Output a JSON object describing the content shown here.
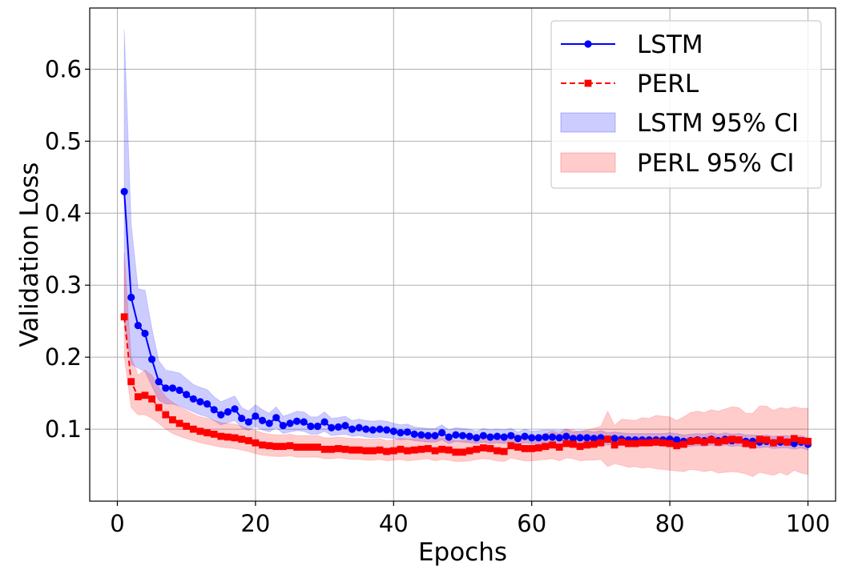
{
  "chart_data": {
    "type": "line",
    "xlabel": "Epochs",
    "ylabel": "Validation Loss",
    "xlim": [
      -4,
      104
    ],
    "ylim": [
      0.0,
      0.685
    ],
    "xticks": [
      0,
      20,
      40,
      60,
      80,
      100
    ],
    "yticks": [
      0.1,
      0.2,
      0.3,
      0.4,
      0.5,
      0.6
    ],
    "grid": true,
    "legend_position": "top-right",
    "x": [
      1,
      2,
      3,
      4,
      5,
      6,
      7,
      8,
      9,
      10,
      11,
      12,
      13,
      14,
      15,
      16,
      17,
      18,
      19,
      20,
      21,
      22,
      23,
      24,
      25,
      26,
      27,
      28,
      29,
      30,
      31,
      32,
      33,
      34,
      35,
      36,
      37,
      38,
      39,
      40,
      41,
      42,
      43,
      44,
      45,
      46,
      47,
      48,
      49,
      50,
      51,
      52,
      53,
      54,
      55,
      56,
      57,
      58,
      59,
      60,
      61,
      62,
      63,
      64,
      65,
      66,
      67,
      68,
      69,
      70,
      71,
      72,
      73,
      74,
      75,
      76,
      77,
      78,
      79,
      80,
      81,
      82,
      83,
      84,
      85,
      86,
      87,
      88,
      89,
      90,
      91,
      92,
      93,
      94,
      95,
      96,
      97,
      98,
      99,
      100
    ],
    "series": [
      {
        "name": "LSTM",
        "color": "#0000ff",
        "marker": "circle",
        "linestyle": "solid",
        "values": [
          0.43,
          0.283,
          0.244,
          0.233,
          0.197,
          0.166,
          0.157,
          0.157,
          0.154,
          0.148,
          0.142,
          0.138,
          0.135,
          0.127,
          0.12,
          0.124,
          0.128,
          0.115,
          0.11,
          0.118,
          0.112,
          0.108,
          0.116,
          0.105,
          0.108,
          0.111,
          0.11,
          0.104,
          0.104,
          0.11,
          0.102,
          0.103,
          0.105,
          0.1,
          0.102,
          0.1,
          0.099,
          0.1,
          0.099,
          0.097,
          0.095,
          0.096,
          0.093,
          0.092,
          0.091,
          0.091,
          0.095,
          0.089,
          0.092,
          0.091,
          0.09,
          0.088,
          0.091,
          0.089,
          0.09,
          0.089,
          0.091,
          0.087,
          0.09,
          0.088,
          0.088,
          0.089,
          0.089,
          0.088,
          0.09,
          0.087,
          0.088,
          0.088,
          0.087,
          0.088,
          0.086,
          0.087,
          0.086,
          0.085,
          0.085,
          0.085,
          0.085,
          0.085,
          0.085,
          0.086,
          0.085,
          0.083,
          0.084,
          0.085,
          0.084,
          0.086,
          0.084,
          0.086,
          0.084,
          0.085,
          0.083,
          0.083,
          0.082,
          0.083,
          0.081,
          0.082,
          0.082,
          0.08,
          0.082,
          0.079
        ],
        "ci_lower": [
          0.25,
          0.19,
          0.185,
          0.18,
          0.16,
          0.14,
          0.135,
          0.135,
          0.132,
          0.128,
          0.124,
          0.12,
          0.117,
          0.112,
          0.106,
          0.109,
          0.112,
          0.102,
          0.098,
          0.104,
          0.099,
          0.096,
          0.102,
          0.094,
          0.096,
          0.098,
          0.097,
          0.093,
          0.093,
          0.097,
          0.091,
          0.092,
          0.093,
          0.09,
          0.091,
          0.089,
          0.088,
          0.089,
          0.088,
          0.087,
          0.085,
          0.086,
          0.084,
          0.083,
          0.082,
          0.082,
          0.085,
          0.08,
          0.083,
          0.082,
          0.081,
          0.08,
          0.082,
          0.08,
          0.081,
          0.08,
          0.082,
          0.079,
          0.081,
          0.08,
          0.079,
          0.08,
          0.08,
          0.079,
          0.081,
          0.079,
          0.079,
          0.079,
          0.079,
          0.079,
          0.078,
          0.079,
          0.078,
          0.077,
          0.077,
          0.077,
          0.077,
          0.077,
          0.077,
          0.078,
          0.077,
          0.075,
          0.076,
          0.077,
          0.076,
          0.078,
          0.076,
          0.078,
          0.076,
          0.077,
          0.075,
          0.075,
          0.074,
          0.075,
          0.073,
          0.074,
          0.074,
          0.072,
          0.074,
          0.071
        ],
        "ci_upper": [
          0.655,
          0.385,
          0.295,
          0.293,
          0.24,
          0.195,
          0.182,
          0.18,
          0.178,
          0.17,
          0.162,
          0.158,
          0.155,
          0.145,
          0.138,
          0.142,
          0.146,
          0.13,
          0.125,
          0.134,
          0.127,
          0.122,
          0.131,
          0.118,
          0.121,
          0.125,
          0.124,
          0.117,
          0.117,
          0.124,
          0.115,
          0.116,
          0.118,
          0.112,
          0.114,
          0.112,
          0.111,
          0.112,
          0.111,
          0.108,
          0.106,
          0.107,
          0.103,
          0.102,
          0.101,
          0.101,
          0.106,
          0.099,
          0.102,
          0.101,
          0.1,
          0.097,
          0.101,
          0.099,
          0.1,
          0.099,
          0.101,
          0.096,
          0.1,
          0.097,
          0.098,
          0.099,
          0.099,
          0.098,
          0.1,
          0.096,
          0.098,
          0.098,
          0.096,
          0.098,
          0.095,
          0.096,
          0.095,
          0.094,
          0.094,
          0.094,
          0.094,
          0.094,
          0.094,
          0.095,
          0.094,
          0.092,
          0.093,
          0.094,
          0.093,
          0.095,
          0.093,
          0.095,
          0.093,
          0.094,
          0.092,
          0.092,
          0.091,
          0.092,
          0.09,
          0.091,
          0.091,
          0.089,
          0.091,
          0.088
        ]
      },
      {
        "name": "PERL",
        "color": "#ff0000",
        "marker": "square",
        "linestyle": "dashed",
        "values": [
          0.256,
          0.166,
          0.145,
          0.147,
          0.142,
          0.13,
          0.12,
          0.113,
          0.108,
          0.104,
          0.1,
          0.097,
          0.095,
          0.093,
          0.09,
          0.089,
          0.088,
          0.086,
          0.084,
          0.081,
          0.078,
          0.077,
          0.076,
          0.076,
          0.077,
          0.075,
          0.075,
          0.075,
          0.075,
          0.072,
          0.072,
          0.073,
          0.072,
          0.071,
          0.071,
          0.07,
          0.07,
          0.071,
          0.069,
          0.07,
          0.072,
          0.07,
          0.071,
          0.072,
          0.073,
          0.07,
          0.072,
          0.071,
          0.068,
          0.068,
          0.07,
          0.072,
          0.074,
          0.073,
          0.07,
          0.069,
          0.077,
          0.075,
          0.073,
          0.073,
          0.074,
          0.076,
          0.078,
          0.075,
          0.08,
          0.079,
          0.076,
          0.078,
          0.079,
          0.081,
          0.086,
          0.078,
          0.082,
          0.08,
          0.08,
          0.081,
          0.081,
          0.082,
          0.081,
          0.08,
          0.077,
          0.079,
          0.083,
          0.084,
          0.082,
          0.085,
          0.082,
          0.084,
          0.086,
          0.085,
          0.08,
          0.078,
          0.086,
          0.085,
          0.081,
          0.085,
          0.082,
          0.087,
          0.084,
          0.083
        ],
        "ci_lower": [
          0.2,
          0.13,
          0.12,
          0.12,
          0.115,
          0.108,
          0.1,
          0.094,
          0.09,
          0.087,
          0.084,
          0.081,
          0.079,
          0.077,
          0.075,
          0.074,
          0.073,
          0.071,
          0.069,
          0.066,
          0.064,
          0.063,
          0.062,
          0.062,
          0.063,
          0.061,
          0.061,
          0.061,
          0.061,
          0.059,
          0.059,
          0.06,
          0.059,
          0.058,
          0.058,
          0.057,
          0.057,
          0.058,
          0.056,
          0.057,
          0.058,
          0.056,
          0.057,
          0.058,
          0.059,
          0.056,
          0.058,
          0.057,
          0.055,
          0.055,
          0.056,
          0.058,
          0.059,
          0.058,
          0.056,
          0.055,
          0.06,
          0.058,
          0.056,
          0.056,
          0.057,
          0.058,
          0.059,
          0.056,
          0.06,
          0.059,
          0.056,
          0.057,
          0.057,
          0.058,
          0.048,
          0.052,
          0.05,
          0.047,
          0.048,
          0.046,
          0.047,
          0.045,
          0.044,
          0.043,
          0.042,
          0.041,
          0.044,
          0.043,
          0.041,
          0.043,
          0.039,
          0.04,
          0.041,
          0.04,
          0.038,
          0.034,
          0.04,
          0.038,
          0.036,
          0.04,
          0.036,
          0.043,
          0.039,
          0.037
        ],
        "ci_upper": [
          0.345,
          0.2,
          0.175,
          0.182,
          0.175,
          0.158,
          0.145,
          0.137,
          0.131,
          0.126,
          0.121,
          0.117,
          0.115,
          0.112,
          0.109,
          0.108,
          0.107,
          0.104,
          0.101,
          0.098,
          0.095,
          0.093,
          0.092,
          0.092,
          0.093,
          0.091,
          0.091,
          0.091,
          0.091,
          0.088,
          0.088,
          0.089,
          0.088,
          0.087,
          0.087,
          0.086,
          0.086,
          0.087,
          0.084,
          0.085,
          0.088,
          0.086,
          0.087,
          0.088,
          0.089,
          0.086,
          0.088,
          0.087,
          0.084,
          0.084,
          0.086,
          0.088,
          0.09,
          0.089,
          0.086,
          0.085,
          0.094,
          0.092,
          0.09,
          0.09,
          0.091,
          0.094,
          0.097,
          0.094,
          0.1,
          0.099,
          0.096,
          0.099,
          0.101,
          0.104,
          0.125,
          0.105,
          0.114,
          0.113,
          0.112,
          0.116,
          0.115,
          0.119,
          0.118,
          0.117,
          0.112,
          0.117,
          0.123,
          0.125,
          0.123,
          0.127,
          0.125,
          0.128,
          0.131,
          0.13,
          0.122,
          0.122,
          0.132,
          0.132,
          0.126,
          0.13,
          0.128,
          0.131,
          0.129,
          0.129
        ]
      }
    ],
    "ci_bands": [
      {
        "name": "LSTM 95% CI",
        "series": "LSTM",
        "color": "#0000ff",
        "opacity": 0.2
      },
      {
        "name": "PERL 95% CI",
        "series": "PERL",
        "color": "#ff0000",
        "opacity": 0.2
      }
    ]
  }
}
